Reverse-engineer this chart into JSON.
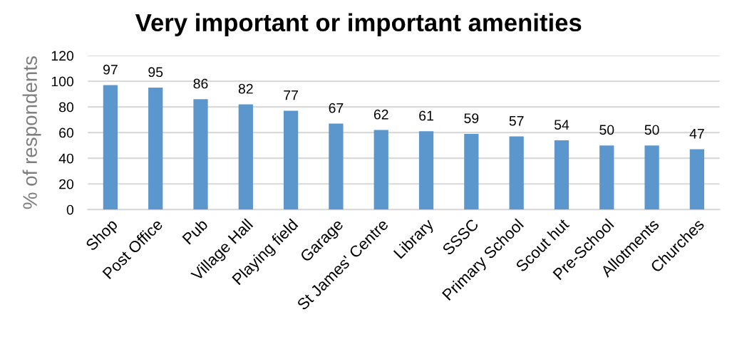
{
  "chart_data": {
    "type": "bar",
    "title": "Very important or important amenities",
    "ylabel": "% of respondents",
    "categories": [
      "Shop",
      "Post Office",
      "Pub",
      "Village Hall",
      "Playing field",
      "Garage",
      "St James' Centre",
      "Library",
      "SSSC",
      "Primary School",
      "Scout hut",
      "Pre-School",
      "Allotments",
      "Churches"
    ],
    "values": [
      97,
      95,
      86,
      82,
      77,
      67,
      62,
      61,
      59,
      57,
      54,
      50,
      50,
      47
    ],
    "color": "#5b96cc",
    "ylim": [
      0,
      120
    ],
    "yticks": [
      0,
      20,
      40,
      60,
      80,
      100,
      120
    ],
    "grid": "y",
    "data_labels": true,
    "legend": false
  }
}
